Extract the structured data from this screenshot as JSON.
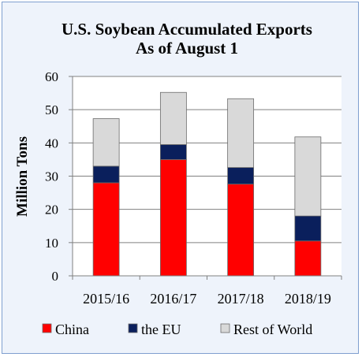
{
  "chart_data": {
    "type": "bar",
    "stacked": true,
    "title": "U.S. Soybean Accumulated Exports",
    "subtitle": "As of August 1",
    "ylabel": "Million Tons",
    "xlabel": "",
    "ylim": [
      0,
      60
    ],
    "yticks": [
      "0",
      "10",
      "20",
      "30",
      "40",
      "50",
      "60"
    ],
    "categories": [
      "2015/16",
      "2016/17",
      "2017/18",
      "2018/19"
    ],
    "series": [
      {
        "name": "China",
        "color": "#ff0000",
        "values": [
          28.0,
          35.0,
          27.6,
          10.5
        ]
      },
      {
        "name": "the EU",
        "color": "#0a1f5c",
        "values": [
          5.0,
          4.5,
          5.0,
          7.5
        ]
      },
      {
        "name": "Rest of World",
        "color": "#d9d9d9",
        "values": [
          14.3,
          15.7,
          20.7,
          23.8
        ]
      }
    ],
    "grid": true,
    "legend_position": "bottom"
  }
}
